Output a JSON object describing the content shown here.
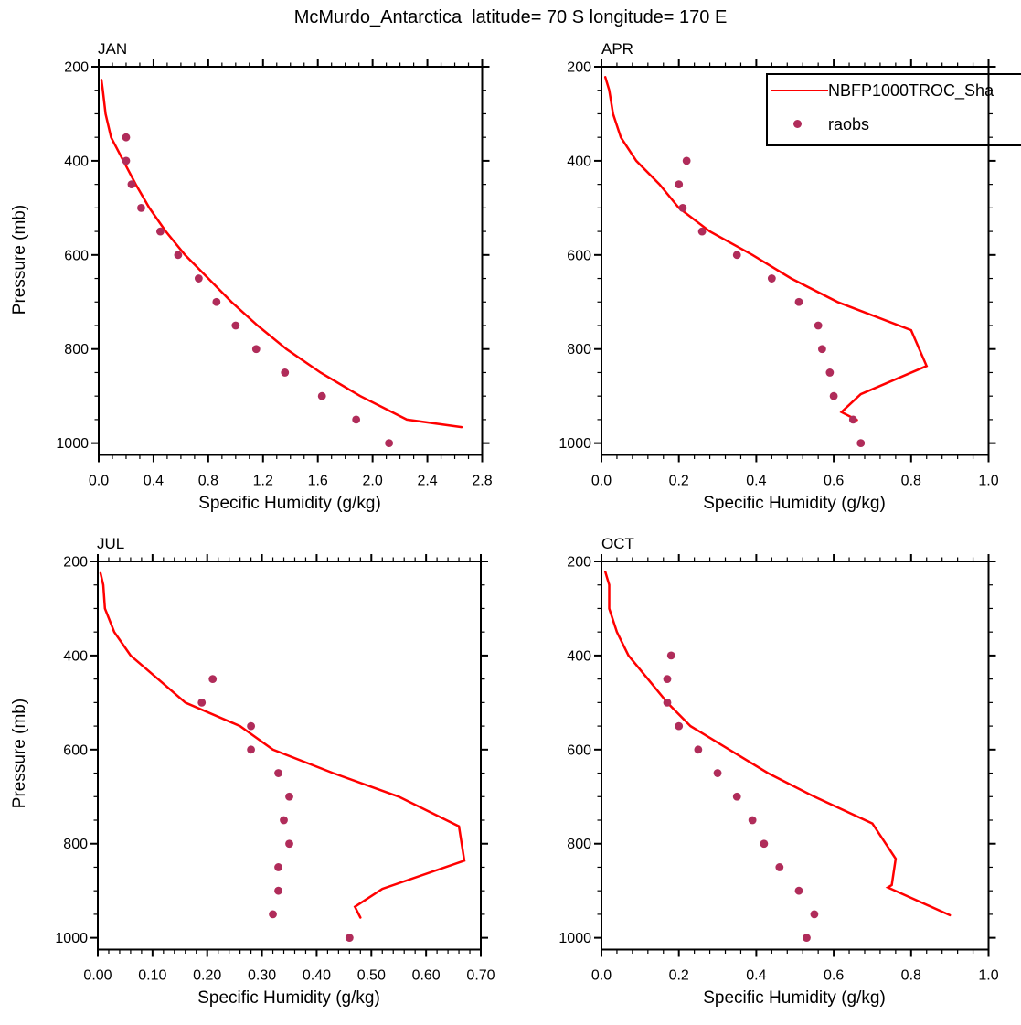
{
  "page_title": "McMurdo_Antarctica  latitude= 70 S longitude= 170 E",
  "ylabel": "Pressure (mb)",
  "colors": {
    "model_line": "#ff0000",
    "raobs_dot": "#b02c5a",
    "axis": "#000000",
    "background": "#ffffff"
  },
  "legend": {
    "items": [
      {
        "label": "NBFP1000TROC_Sha",
        "type": "line",
        "color": "#ff0000"
      },
      {
        "label": "raobs",
        "type": "dot",
        "color": "#b02c5a"
      }
    ]
  },
  "chart_data": [
    {
      "type": "line+scatter",
      "title": "JAN",
      "xlabel": "Specific Humidity (g/kg)",
      "ylabel": "Pressure (mb)",
      "xlim": [
        0.0,
        2.8
      ],
      "ylim": [
        200,
        1025
      ],
      "x_ticks": [
        0.0,
        0.4,
        0.8,
        1.2,
        1.6,
        2.0,
        2.4,
        2.8
      ],
      "x_tick_labels": [
        "0.0",
        "0.4",
        "0.8",
        "1.2",
        "1.6",
        "2.0",
        "2.4",
        "2.8"
      ],
      "x_minor_step": 0.1,
      "y_ticks": [
        200,
        400,
        600,
        800,
        1000
      ],
      "y_tick_labels": [
        "200",
        "400",
        "600",
        "800",
        "1000"
      ],
      "y_minor_step": 50,
      "series": [
        {
          "name": "NBFP1000TROC_Sha",
          "type": "line",
          "points": [
            [
              0.02,
              228
            ],
            [
              0.03,
              250
            ],
            [
              0.05,
              300
            ],
            [
              0.09,
              350
            ],
            [
              0.18,
              400
            ],
            [
              0.27,
              450
            ],
            [
              0.37,
              500
            ],
            [
              0.49,
              550
            ],
            [
              0.63,
              600
            ],
            [
              0.8,
              650
            ],
            [
              0.97,
              700
            ],
            [
              1.16,
              750
            ],
            [
              1.37,
              800
            ],
            [
              1.62,
              850
            ],
            [
              1.91,
              900
            ],
            [
              2.25,
              950
            ],
            [
              2.65,
              966
            ]
          ]
        },
        {
          "name": "raobs",
          "type": "scatter",
          "points": [
            [
              0.2,
              350
            ],
            [
              0.2,
              400
            ],
            [
              0.24,
              450
            ],
            [
              0.31,
              500
            ],
            [
              0.45,
              550
            ],
            [
              0.58,
              600
            ],
            [
              0.73,
              650
            ],
            [
              0.86,
              700
            ],
            [
              1.0,
              750
            ],
            [
              1.15,
              800
            ],
            [
              1.36,
              850
            ],
            [
              1.63,
              900
            ],
            [
              1.88,
              950
            ],
            [
              2.12,
              1000
            ]
          ]
        }
      ]
    },
    {
      "type": "line+scatter",
      "title": "APR",
      "xlabel": "Specific Humidity (g/kg)",
      "ylabel": "Pressure (mb)",
      "xlim": [
        0.0,
        1.0
      ],
      "ylim": [
        200,
        1025
      ],
      "x_ticks": [
        0.0,
        0.2,
        0.4,
        0.6,
        0.8,
        1.0
      ],
      "x_tick_labels": [
        "0.0",
        "0.2",
        "0.4",
        "0.6",
        "0.8",
        "1.0"
      ],
      "x_minor_step": 0.04,
      "y_ticks": [
        200,
        400,
        600,
        800,
        1000
      ],
      "y_tick_labels": [
        "200",
        "400",
        "600",
        "800",
        "1000"
      ],
      "y_minor_step": 50,
      "series": [
        {
          "name": "NBFP1000TROC_Sha",
          "type": "line",
          "points": [
            [
              0.01,
              222
            ],
            [
              0.02,
              250
            ],
            [
              0.03,
              300
            ],
            [
              0.05,
              350
            ],
            [
              0.09,
              400
            ],
            [
              0.15,
              450
            ],
            [
              0.2,
              500
            ],
            [
              0.28,
              550
            ],
            [
              0.39,
              600
            ],
            [
              0.49,
              650
            ],
            [
              0.61,
              700
            ],
            [
              0.8,
              760
            ],
            [
              0.84,
              836
            ],
            [
              0.67,
              896
            ],
            [
              0.62,
              934
            ],
            [
              0.66,
              951
            ]
          ]
        },
        {
          "name": "raobs",
          "type": "scatter",
          "points": [
            [
              0.22,
              400
            ],
            [
              0.2,
              450
            ],
            [
              0.21,
              500
            ],
            [
              0.26,
              550
            ],
            [
              0.35,
              600
            ],
            [
              0.44,
              650
            ],
            [
              0.51,
              700
            ],
            [
              0.56,
              750
            ],
            [
              0.57,
              800
            ],
            [
              0.59,
              850
            ],
            [
              0.6,
              900
            ],
            [
              0.65,
              950
            ],
            [
              0.67,
              1000
            ]
          ]
        }
      ]
    },
    {
      "type": "line+scatter",
      "title": "JUL",
      "xlabel": "Specific Humidity (g/kg)",
      "ylabel": "Pressure (mb)",
      "xlim": [
        0.0,
        0.7
      ],
      "ylim": [
        200,
        1025
      ],
      "x_ticks": [
        0.0,
        0.1,
        0.2,
        0.3,
        0.4,
        0.5,
        0.6,
        0.7
      ],
      "x_tick_labels": [
        "0.00",
        "0.10",
        "0.20",
        "0.30",
        "0.40",
        "0.50",
        "0.60",
        "0.70"
      ],
      "x_minor_step": 0.02,
      "y_ticks": [
        200,
        400,
        600,
        800,
        1000
      ],
      "y_tick_labels": [
        "200",
        "400",
        "600",
        "800",
        "1000"
      ],
      "y_minor_step": 50,
      "series": [
        {
          "name": "NBFP1000TROC_Sha",
          "type": "line",
          "points": [
            [
              0.005,
              225
            ],
            [
              0.01,
              250
            ],
            [
              0.013,
              300
            ],
            [
              0.03,
              350
            ],
            [
              0.06,
              400
            ],
            [
              0.11,
              450
            ],
            [
              0.16,
              500
            ],
            [
              0.26,
              550
            ],
            [
              0.32,
              600
            ],
            [
              0.43,
              650
            ],
            [
              0.55,
              700
            ],
            [
              0.66,
              763
            ],
            [
              0.67,
              836
            ],
            [
              0.52,
              896
            ],
            [
              0.47,
              934
            ],
            [
              0.48,
              957
            ]
          ]
        },
        {
          "name": "raobs",
          "type": "scatter",
          "points": [
            [
              0.21,
              450
            ],
            [
              0.19,
              500
            ],
            [
              0.28,
              550
            ],
            [
              0.28,
              600
            ],
            [
              0.33,
              650
            ],
            [
              0.35,
              700
            ],
            [
              0.34,
              750
            ],
            [
              0.35,
              800
            ],
            [
              0.33,
              850
            ],
            [
              0.33,
              900
            ],
            [
              0.32,
              950
            ],
            [
              0.46,
              1000
            ]
          ]
        }
      ]
    },
    {
      "type": "line+scatter",
      "title": "OCT",
      "xlabel": "Specific Humidity (g/kg)",
      "ylabel": "Pressure (mb)",
      "xlim": [
        0.0,
        1.0
      ],
      "ylim": [
        200,
        1025
      ],
      "x_ticks": [
        0.0,
        0.2,
        0.4,
        0.6,
        0.8,
        1.0
      ],
      "x_tick_labels": [
        "0.0",
        "0.2",
        "0.4",
        "0.6",
        "0.8",
        "1.0"
      ],
      "x_minor_step": 0.04,
      "y_ticks": [
        200,
        400,
        600,
        800,
        1000
      ],
      "y_tick_labels": [
        "200",
        "400",
        "600",
        "800",
        "1000"
      ],
      "y_minor_step": 50,
      "series": [
        {
          "name": "NBFP1000TROC_Sha",
          "type": "line",
          "points": [
            [
              0.01,
              222
            ],
            [
              0.02,
              250
            ],
            [
              0.02,
              300
            ],
            [
              0.04,
              350
            ],
            [
              0.07,
              400
            ],
            [
              0.12,
              450
            ],
            [
              0.17,
              500
            ],
            [
              0.23,
              550
            ],
            [
              0.33,
              600
            ],
            [
              0.43,
              650
            ],
            [
              0.55,
              700
            ],
            [
              0.7,
              757
            ],
            [
              0.76,
              832
            ],
            [
              0.75,
              888
            ],
            [
              0.74,
              893
            ],
            [
              0.9,
              952
            ]
          ]
        },
        {
          "name": "raobs",
          "type": "scatter",
          "points": [
            [
              0.18,
              400
            ],
            [
              0.17,
              450
            ],
            [
              0.17,
              500
            ],
            [
              0.2,
              550
            ],
            [
              0.25,
              600
            ],
            [
              0.3,
              650
            ],
            [
              0.35,
              700
            ],
            [
              0.39,
              750
            ],
            [
              0.42,
              800
            ],
            [
              0.46,
              850
            ],
            [
              0.51,
              900
            ],
            [
              0.55,
              950
            ],
            [
              0.53,
              1000
            ]
          ]
        }
      ]
    }
  ]
}
